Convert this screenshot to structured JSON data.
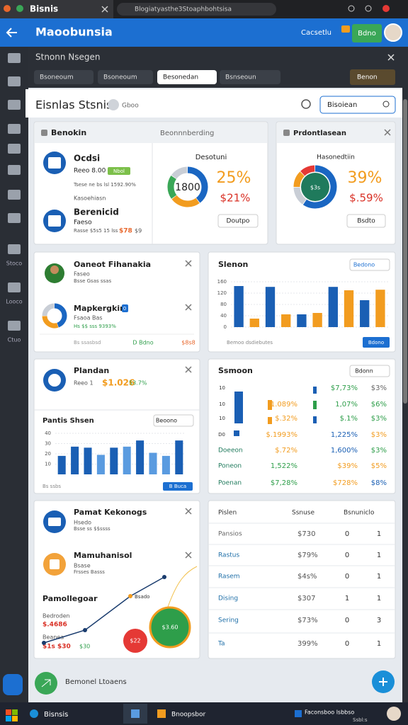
{
  "browser": {
    "tab": "Bisnis",
    "url": "Blogiatyasthe3Stoaphbohtsisa"
  },
  "header": {
    "title": "Maoobunsia",
    "link": "Cacsetlu",
    "button": "Bdno"
  },
  "sidebar": {
    "labels": [
      "Stoco",
      "Looco",
      "Ctuo"
    ]
  },
  "subheader": {
    "title": "Stnonn Nsegen",
    "filters": [
      "Bsoneoum",
      "Bsoneoum",
      "Besonedan",
      "Bsnseoun"
    ],
    "button": "Benon"
  },
  "panel": {
    "title": "Eisnlas Stsnis",
    "badge": "Gboo",
    "search": "Bisoiean"
  },
  "overview": {
    "title": "Benokin",
    "subtitle": "Beonnnberding",
    "item1": {
      "name": "Ocdsi",
      "line1": "Reeo 8.00",
      "tag": "Nbol",
      "line2": "Tsese ne bs lsl 1592.90%",
      "line3": "Kasoehiasn"
    },
    "item2": {
      "name": "Berenicid",
      "line1": "Faeso",
      "line2": "Rasse $5s5 15 lss",
      "value": "$78",
      "extra": "$9"
    },
    "donut": {
      "title": "Desotuni",
      "center": "1800",
      "value": "25%",
      "sub": "$21%",
      "button": "Doutpo",
      "segments": [
        {
          "value": 40,
          "color": "#1a66c2"
        },
        {
          "value": 25,
          "color": "#f29c1f"
        },
        {
          "value": 20,
          "color": "#3aa757"
        },
        {
          "value": 15,
          "color": "#c9ced6"
        }
      ]
    }
  },
  "forecast": {
    "title": "Prdontlasean",
    "donut": {
      "title": "Hasonedtiin",
      "center": "$3s",
      "value": "39%",
      "sub": "$.59%",
      "button": "Bsdto",
      "segments": [
        {
          "value": 60,
          "color": "#1a66c2"
        },
        {
          "value": 15,
          "color": "#c9ced6"
        },
        {
          "value": 13,
          "color": "#f29c1f"
        },
        {
          "value": 12,
          "color": "#e53935"
        }
      ]
    }
  },
  "people": {
    "person": {
      "name": "Oaneot Fihanakia",
      "line1": "Faseo",
      "line2": "Bsse Gsas ssas"
    },
    "market": {
      "name": "Mapkergkin",
      "badge": "0",
      "line1": "Fsaoa Bas",
      "line2": "Hs $$ sss 9393%",
      "segments": [
        {
          "value": 45,
          "color": "#1a66c2"
        },
        {
          "value": 30,
          "color": "#f29c1f"
        },
        {
          "value": 25,
          "color": "#c9ced6"
        }
      ]
    },
    "footer": "Bs ssasbsd",
    "button": "D Bdno",
    "value": "$8s8"
  },
  "slenon": {
    "title": "Slenon",
    "button": "Bedono",
    "ylim": [
      0,
      160
    ],
    "yticks": [
      0,
      40,
      80,
      120,
      160
    ],
    "values": [
      145,
      30,
      142,
      45,
      45,
      50,
      142,
      130,
      95,
      132
    ],
    "colors": [
      "#1a5fb4",
      "#f29c1f",
      "#1a5fb4",
      "#f29c1f",
      "#1a5fb4",
      "#f29c1f",
      "#1a5fb4",
      "#f29c1f",
      "#1a5fb4",
      "#f29c1f"
    ],
    "footer": "Bemoo dsdiebutes",
    "footer_button": "Bdono"
  },
  "plandan": {
    "title": "Plandan",
    "line": "Reeo 1",
    "value": "$1.026",
    "change": "53.7%",
    "chart": {
      "title": "Pantis Shsen",
      "button": "Beoono",
      "ylim": [
        0,
        40
      ],
      "yticks": [
        10,
        20,
        30,
        40
      ],
      "values": [
        18,
        27,
        26,
        19,
        26,
        27,
        33,
        21,
        18,
        33
      ],
      "colors": [
        "#1a5fb4",
        "#1a5fb4",
        "#1a5fb4",
        "#5a9be0",
        "#1a5fb4",
        "#5a9be0",
        "#1a5fb4",
        "#5a9be0",
        "#5a9be0",
        "#1a5fb4"
      ]
    },
    "footer": "Bs ssbs",
    "footer_button": "B Buca"
  },
  "ssmoon": {
    "title": "Ssmoon",
    "button": "Bdonn",
    "rows": [
      {
        "label": "10",
        "cells": [
          {
            "text": "$7,73%",
            "color": "#2e9e4a"
          },
          {
            "text": "$3%",
            "color": "#666"
          }
        ]
      },
      {
        "label": "10",
        "cells": [
          {
            "text": "1.089%",
            "color": "#f29c1f"
          },
          {
            "text": "1,07%",
            "color": "#2e9e4a"
          },
          {
            "text": "$6%",
            "color": "#2e9e4a"
          }
        ]
      },
      {
        "label": "10",
        "cells": [
          {
            "text": "$.32%",
            "color": "#f29c1f"
          },
          {
            "text": "$.1%",
            "color": "#2e9e4a"
          },
          {
            "text": "$3%",
            "color": "#2e9e4a"
          }
        ]
      },
      {
        "label": "D0",
        "cells": [
          {
            "text": "$.1993%",
            "color": "#f29c1f"
          },
          {
            "text": "1,225%",
            "color": "#1a5fb4"
          },
          {
            "text": "$3%",
            "color": "#f29c1f"
          }
        ]
      },
      {
        "label": "Doeeon",
        "cells": [
          {
            "text": "$.72%",
            "color": "#f29c1f"
          },
          {
            "text": "1,600%",
            "color": "#1a5fb4"
          },
          {
            "text": "$3%",
            "color": "#2e9e4a"
          }
        ]
      },
      {
        "label": "Poneon",
        "cells": [
          {
            "text": "1,522%",
            "color": "#2e9e4a"
          },
          {
            "text": "$39%",
            "color": "#f29c1f"
          },
          {
            "text": "$5%",
            "color": "#f29c1f"
          }
        ]
      },
      {
        "label": "Poenan",
        "cells": [
          {
            "text": "$7,28%",
            "color": "#2e9e4a"
          },
          {
            "text": "$728%",
            "color": "#f29c1f"
          },
          {
            "text": "$8%",
            "color": "#1a5fb4"
          }
        ]
      }
    ]
  },
  "pamat": {
    "item1": {
      "name": "Pamat Kekonogs",
      "line1": "Hsedo",
      "line2": "Bsse ss $$ssss"
    },
    "item2": {
      "name": "Mamuhanisol",
      "line1": "Bsase",
      "line2": "Frsses Basss"
    },
    "chart": {
      "title": "Pamollegoar",
      "label1": "Bedroden",
      "value1": "$.4686",
      "label2": "Beanea",
      "value2": "$1s $30",
      "value3": "$30",
      "point_label": "Bsado",
      "trend": [
        8,
        20,
        52,
        70
      ],
      "ylim": [
        0,
        80
      ],
      "bubbles": [
        {
          "label": "$22",
          "size": 17,
          "color": "#e53935"
        },
        {
          "label": "$3.60",
          "size": 28,
          "color": "#2e9e4a"
        }
      ]
    }
  },
  "pislen": {
    "columns": [
      "Pislen",
      "Ssnuse",
      "Bsnuniclo"
    ],
    "rows": [
      [
        "Pansios",
        "$730",
        0,
        1
      ],
      [
        "Rastus",
        "$79%",
        0,
        1
      ],
      [
        "Rasem",
        "$4s%",
        0,
        1
      ],
      [
        "Dising",
        "$307",
        1,
        1
      ],
      [
        "Sering",
        "$73%",
        0,
        3
      ],
      [
        "Ta",
        "399%",
        0,
        1
      ]
    ]
  },
  "footer": {
    "text": "Bemonel Ltoaens"
  },
  "taskbar": {
    "app": "Bisnsis",
    "item": "Bnoopsbor",
    "notice": "Faconsboo lsbbso",
    "time": "Ssbl:s"
  }
}
